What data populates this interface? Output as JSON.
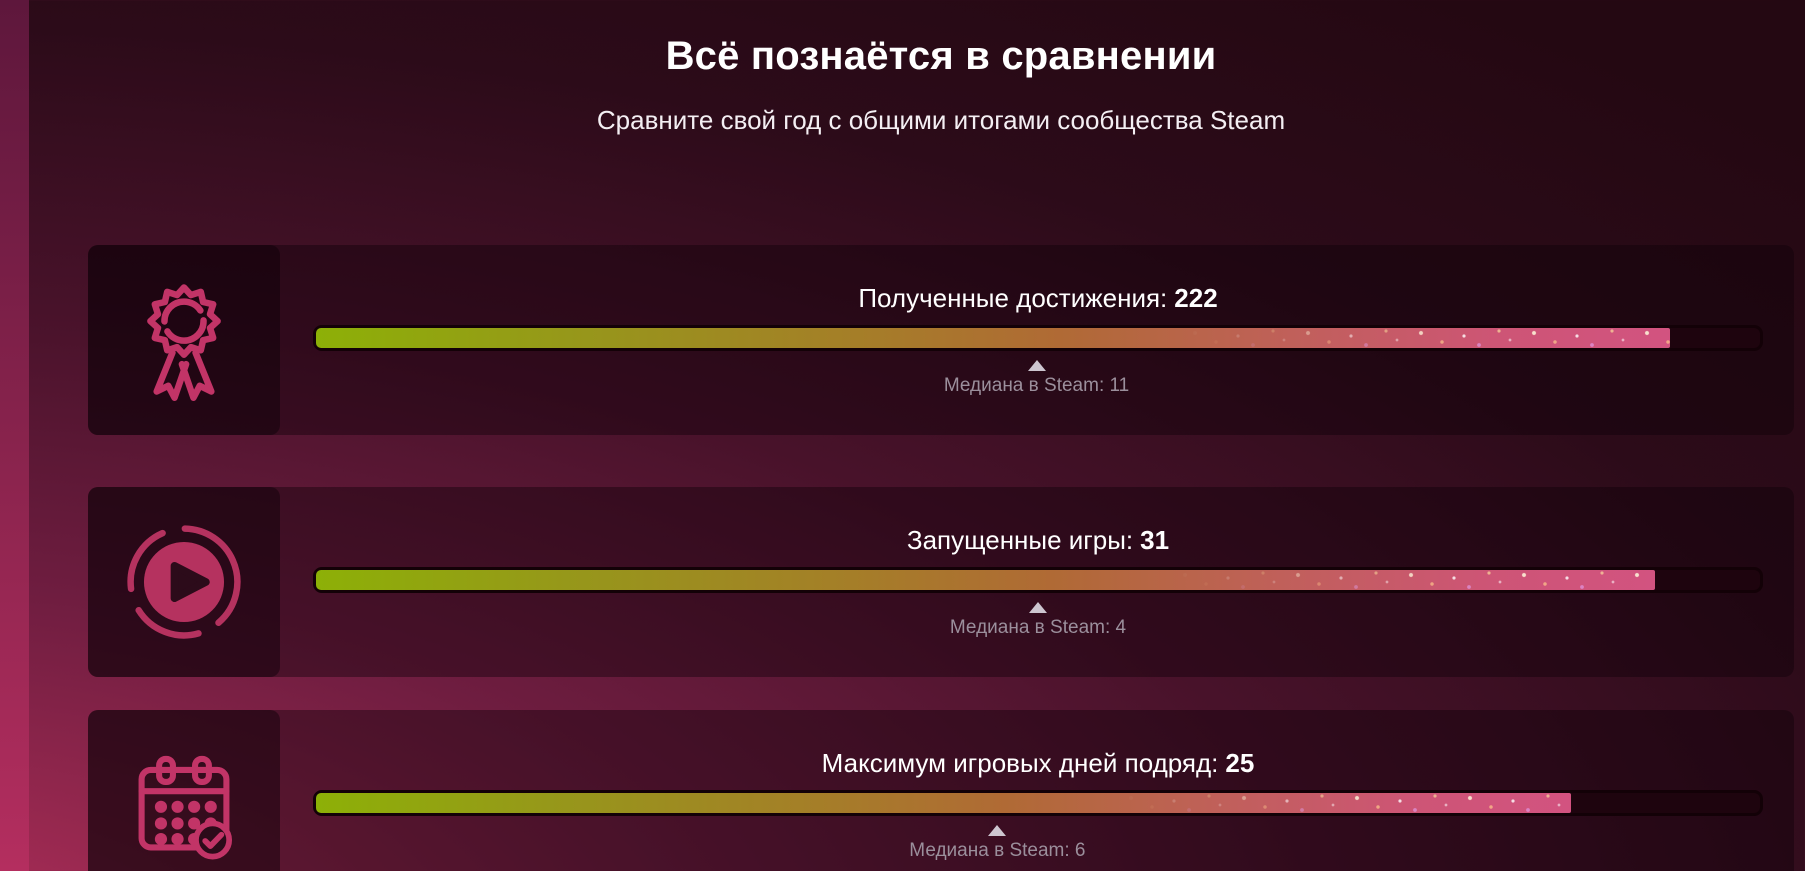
{
  "header": {
    "title": "Всё познаётся в сравнении",
    "subtitle": "Сравните свой год с общими итогами сообщества Steam"
  },
  "rows": [
    {
      "icon": "award-ribbon-icon",
      "label": "Полученные достижения:",
      "value": "222",
      "median_label": "Медиана в Steam: 11",
      "fill_percent": 93.8,
      "median_percent": 49.9
    },
    {
      "icon": "play-circle-icon",
      "label": "Запущенные игры:",
      "value": "31",
      "median_label": "Медиана в Steam: 4",
      "fill_percent": 92.7,
      "median_percent": 50.0
    },
    {
      "icon": "calendar-check-icon",
      "label": "Максимум игровых дней подряд:",
      "value": "25",
      "median_label": "Медиана в Steam: 6",
      "fill_percent": 86.9,
      "median_percent": 47.2
    }
  ],
  "colors": {
    "accent_pink": "#c23467",
    "bar_start": "#8db007",
    "bar_mid": "#b06a35",
    "bar_end": "#d25380",
    "median_text": "#9b8f9c",
    "panel_bg": "#2e0c19",
    "page_bg_bottom_left": "#b7305f",
    "page_bg_top_right": "#240812"
  }
}
